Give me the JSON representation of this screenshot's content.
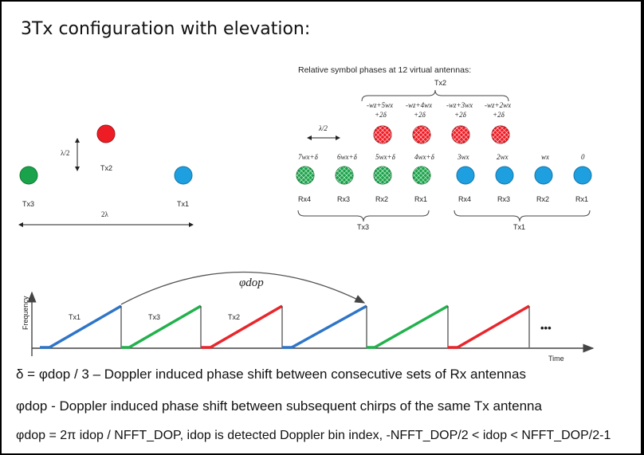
{
  "title": "3Tx configuration with elevation:",
  "geometry": {
    "tx3": "Tx3",
    "tx2": "Tx2",
    "tx1": "Tx1",
    "half_lambda": "λ/2",
    "two_lambda": "2λ"
  },
  "phases": {
    "heading": "Relative symbol phases at 12 virtual antennas:",
    "tx2_group": "Tx2",
    "top_row": [
      {
        "line1": "-wz+5wx",
        "line2": "+2δ"
      },
      {
        "line1": "-wz+4wx",
        "line2": "+2δ"
      },
      {
        "line1": "-wz+3wx",
        "line2": "+2δ"
      },
      {
        "line1": "-wz+2wx",
        "line2": "+2δ"
      }
    ],
    "half_lambda": "λ/2",
    "bottom_row": [
      "7wx+δ",
      "6wx+δ",
      "5wx+δ",
      "4wx+δ",
      "3wx",
      "2wx",
      "wx",
      "0"
    ],
    "rx_labels": [
      "Rx4",
      "Rx3",
      "Rx2",
      "Rx1",
      "Rx4",
      "Rx3",
      "Rx2",
      "Rx1"
    ],
    "tx3_group": "Tx3",
    "tx1_group": "Tx1"
  },
  "chirps": {
    "phi_label": "φdop",
    "y_axis": "Frequency",
    "x_axis": "Time",
    "chirp_labels": [
      "Tx1",
      "Tx3",
      "Tx2"
    ],
    "ellipsis": "•••"
  },
  "equations": {
    "line1": "δ = φdop / 3 – Doppler induced phase shift between consecutive sets of Rx antennas",
    "line2": "φdop - Doppler induced phase shift between subsequent chirps of the same Tx antenna",
    "line3": "φdop = 2π idop / NFFT_DOP, idop is detected Doppler bin index, -NFFT_DOP/2 < idop < NFFT_DOP/2-1"
  },
  "colors": {
    "green": "#1aa34a",
    "red": "#ee1c25",
    "blue": "#1e9fe0",
    "chirp_blue": "#2e75c8",
    "chirp_green": "#22b14c",
    "chirp_red": "#e8262c"
  }
}
